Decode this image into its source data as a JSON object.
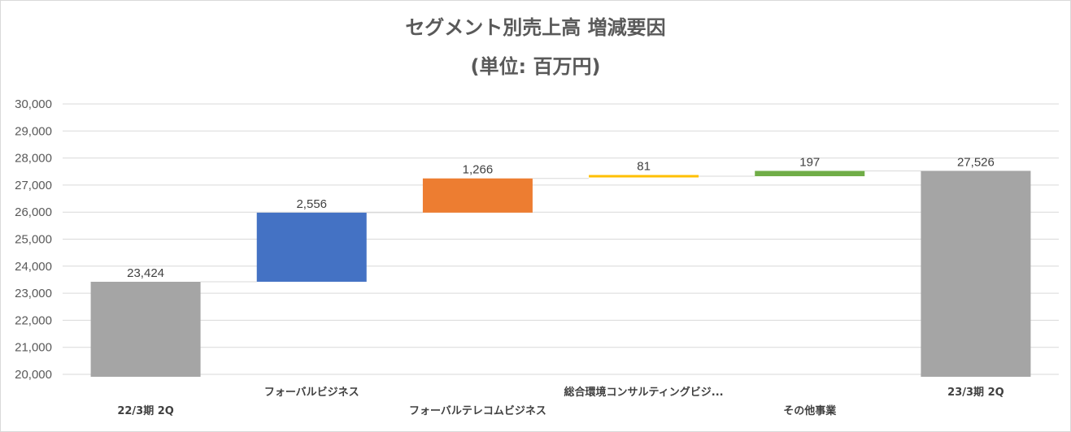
{
  "chart_data": {
    "type": "waterfall",
    "title": "セグメント別売上高 増減要因",
    "subtitle": "(単位: 百万円)",
    "ylim": [
      20000,
      30000
    ],
    "yticks": [
      20000,
      21000,
      22000,
      23000,
      24000,
      25000,
      26000,
      27000,
      28000,
      29000,
      30000
    ],
    "ytick_labels": [
      "20,000",
      "21,000",
      "22,000",
      "23,000",
      "24,000",
      "25,000",
      "26,000",
      "27,000",
      "28,000",
      "29,000",
      "30,000"
    ],
    "grid": true,
    "bars": [
      {
        "category": "22/3期 2Q",
        "kind": "total",
        "value": 23424,
        "label": "23,424",
        "color": "#a5a5a5"
      },
      {
        "category": "フォーバルビジネス",
        "kind": "increase",
        "value": 2556,
        "label": "2,556",
        "color": "#4472c4"
      },
      {
        "category": "フォーバルテレコムビジネス",
        "kind": "increase",
        "value": 1266,
        "label": "1,266",
        "color": "#ed7d31"
      },
      {
        "category": "総合環境コンサルティングビジ...",
        "kind": "increase",
        "value": 81,
        "label": "81",
        "color": "#ffc000"
      },
      {
        "category": "その他事業",
        "kind": "increase",
        "value": 197,
        "label": "197",
        "color": "#70ad47"
      },
      {
        "category": "23/3期 2Q",
        "kind": "total",
        "value": 27526,
        "label": "27,526",
        "color": "#a5a5a5"
      }
    ]
  }
}
